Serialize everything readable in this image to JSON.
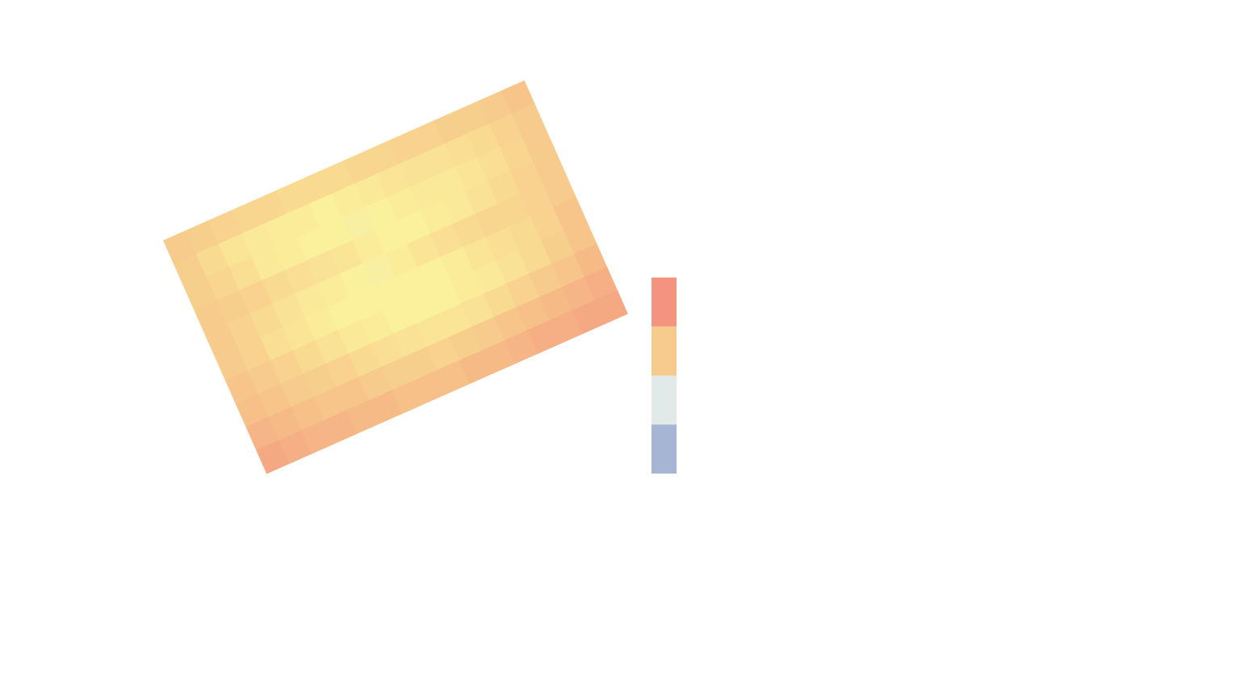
{
  "chart_data": {
    "type": "heatmap",
    "zlim": [
      0,
      4
    ],
    "palette": [
      "#a6b5d3",
      "#e1eae8",
      "#fbf09b",
      "#f7cb8b",
      "#f4937e"
    ],
    "legend_colors": [
      "#f4937e",
      "#f7cb8b",
      "#e1eae8",
      "#a6b5d3"
    ],
    "values": [
      [
        3.0,
        2.9,
        2.8,
        2.7,
        2.7,
        2.6,
        2.6,
        2.6,
        2.7,
        2.7,
        2.8,
        2.8,
        2.9,
        2.9,
        3.0,
        3.1
      ],
      [
        2.9,
        2.6,
        2.3,
        2.2,
        2.1,
        2.1,
        2.0,
        2.1,
        2.2,
        2.3,
        2.4,
        2.4,
        2.5,
        2.6,
        2.8,
        3.0
      ],
      [
        2.9,
        2.7,
        2.5,
        2.2,
        2.1,
        2.0,
        2.0,
        1.9,
        2.0,
        2.1,
        2.2,
        2.2,
        2.3,
        2.5,
        2.7,
        3.0
      ],
      [
        3.0,
        2.9,
        2.8,
        2.6,
        2.5,
        2.4,
        2.3,
        2.1,
        2.0,
        2.0,
        2.1,
        2.2,
        2.4,
        2.6,
        2.8,
        3.0
      ],
      [
        3.0,
        2.8,
        2.6,
        2.4,
        2.2,
        2.1,
        2.0,
        1.9,
        2.1,
        2.3,
        2.5,
        2.6,
        2.7,
        2.7,
        2.8,
        3.0
      ],
      [
        3.0,
        2.8,
        2.5,
        2.3,
        2.1,
        2.0,
        2.0,
        2.0,
        2.0,
        2.0,
        2.1,
        2.3,
        2.5,
        2.6,
        2.8,
        3.1
      ],
      [
        3.1,
        3.0,
        2.8,
        2.6,
        2.4,
        2.2,
        2.1,
        2.0,
        2.0,
        2.0,
        2.1,
        2.2,
        2.4,
        2.6,
        2.9,
        3.1
      ],
      [
        3.2,
        3.1,
        3.0,
        2.9,
        2.8,
        2.6,
        2.5,
        2.4,
        2.3,
        2.3,
        2.4,
        2.6,
        2.8,
        3.0,
        3.1,
        3.3
      ],
      [
        3.4,
        3.3,
        3.2,
        3.1,
        3.1,
        3.0,
        2.9,
        2.9,
        2.8,
        2.9,
        3.0,
        3.1,
        3.2,
        3.3,
        3.4,
        3.5
      ],
      [
        3.6,
        3.5,
        3.4,
        3.4,
        3.3,
        3.3,
        3.2,
        3.2,
        3.2,
        3.3,
        3.3,
        3.4,
        3.5,
        3.5,
        3.6,
        3.6
      ]
    ]
  }
}
